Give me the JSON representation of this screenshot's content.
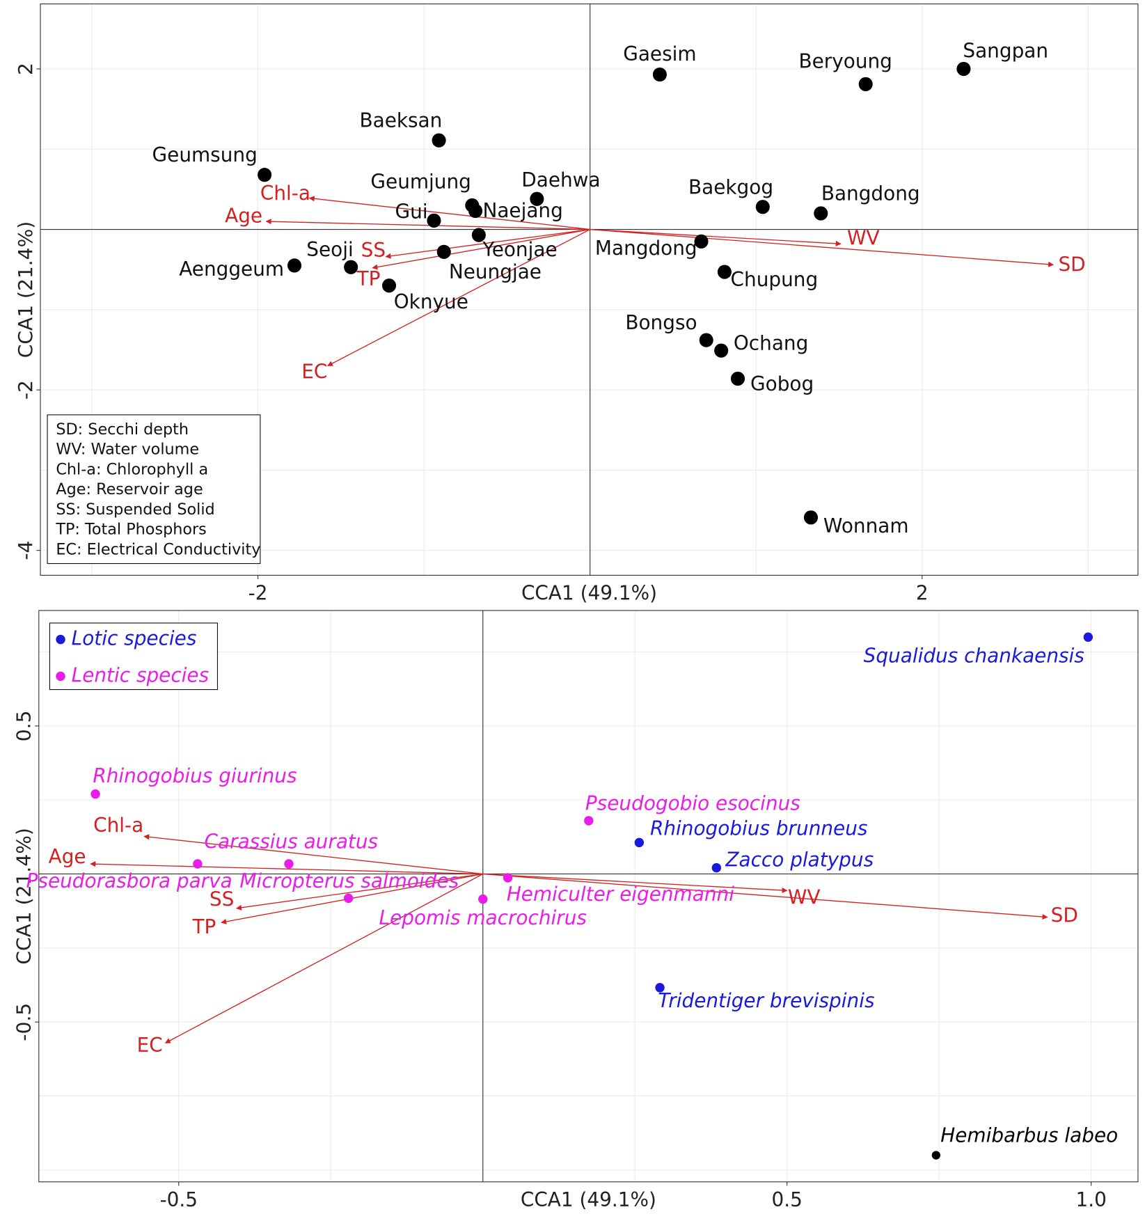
{
  "chart_data": [
    {
      "type": "scatter",
      "xlabel": "CCA1 (49.1%)",
      "ylabel": "CCA1 (21.4%)",
      "xlim": [
        -3.31,
        3.3
      ],
      "ylim": [
        -4.31,
        2.81
      ],
      "xticks": [
        -2,
        2
      ],
      "yticks": [
        2,
        -2,
        -4
      ],
      "grid": true,
      "series": [
        {
          "color": "#000000",
          "labels": [
            "Gaesim",
            "Beryoung",
            "Sangpan",
            "Baeksan",
            "Geumsung",
            "Daehwa",
            "Geumjung",
            "Naejang",
            "Gui",
            "Yeonjae",
            "Neungjae",
            "Seoji",
            "Aenggeum",
            "Oknyue",
            "Baekgog",
            "Bangdong",
            "Mangdong",
            "Chupung",
            "Bongso",
            "Ochang",
            "Gobog",
            "Wonnam"
          ],
          "x": [
            0.42,
            1.66,
            2.25,
            -0.91,
            -1.96,
            -0.32,
            -0.71,
            -0.69,
            -0.94,
            -0.67,
            -0.88,
            -1.44,
            -1.78,
            -1.21,
            1.04,
            1.39,
            0.67,
            0.81,
            0.7,
            0.79,
            0.89,
            1.33
          ],
          "y": [
            1.93,
            1.81,
            2.0,
            1.11,
            0.68,
            0.38,
            0.3,
            0.23,
            0.11,
            -0.07,
            -0.28,
            -0.47,
            -0.45,
            -0.7,
            0.28,
            0.2,
            -0.15,
            -0.53,
            -1.38,
            -1.51,
            -1.86,
            -3.59
          ]
        }
      ],
      "arrows": {
        "color": "#d42020",
        "labels": [
          "Chl-a",
          "Age",
          "SS",
          "TP",
          "EC",
          "WV",
          "SD"
        ],
        "x": [
          -1.69,
          -1.95,
          -1.23,
          -1.31,
          -1.58,
          1.51,
          2.79
        ],
        "y": [
          0.39,
          0.1,
          -0.34,
          -0.48,
          -1.7,
          -0.18,
          -0.44
        ]
      },
      "legend_text": [
        "SD: Secchi depth",
        "WV: Water volume",
        "Chl-a: Chlorophyll a",
        "Age: Reservoir age",
        "SS: Suspended Solid",
        "TP: Total Phosphors",
        "EC: Electrical Conductivity"
      ],
      "legend": "bottom-left"
    },
    {
      "type": "scatter",
      "xlabel": "CCA1 (49.1%)",
      "ylabel": "CCA1 (21.4%)",
      "xlim": [
        -0.73,
        1.077
      ],
      "ylim": [
        -1.04,
        0.89
      ],
      "xticks": [
        -0.5,
        0.5,
        {
          "value": 1,
          "label": "1.0"
        }
      ],
      "yticks": [
        0.5,
        -0.5
      ],
      "grid": true,
      "series": [
        {
          "name": "Lotic species",
          "color": "#1a1adc",
          "labels": [
            "Squalidus chankaensis",
            "Rhinogobius brunneus",
            "Zacco platypus",
            "Tridentiger brevispinis"
          ],
          "x": [
            0.995,
            0.257,
            0.384,
            0.291
          ],
          "y": [
            0.8,
            0.106,
            0.021,
            -0.384
          ]
        },
        {
          "name": "Lentic species",
          "color": "#e81ee8",
          "labels": [
            "Rhinogobius giurinus",
            "Pseudogobio esocinus",
            "Carassius auratus",
            "Pseudorasbora parva",
            "Micropterus salmoides",
            "Hemiculter eigenmanni",
            "Lepomis macrochirus"
          ],
          "x": [
            -0.637,
            0.174,
            -0.319,
            -0.469,
            -0.221,
            0.041,
            0.0
          ],
          "y": [
            0.27,
            0.18,
            0.034,
            0.034,
            -0.082,
            -0.013,
            -0.085
          ]
        },
        {
          "color": "#000000",
          "labels": [
            "Hemibarbus labeo"
          ],
          "x": [
            0.745
          ],
          "y": [
            -0.95
          ]
        }
      ],
      "arrows": {
        "color": "#d42020",
        "labels": [
          "Chl-a",
          "Age",
          "SS",
          "TP",
          "EC",
          "WV",
          "SD"
        ],
        "x": [
          -0.557,
          -0.645,
          -0.405,
          -0.43,
          -0.522,
          0.5,
          0.928
        ],
        "y": [
          0.127,
          0.034,
          -0.116,
          -0.164,
          -0.571,
          -0.056,
          -0.146
        ]
      },
      "legend": "top-left"
    }
  ]
}
